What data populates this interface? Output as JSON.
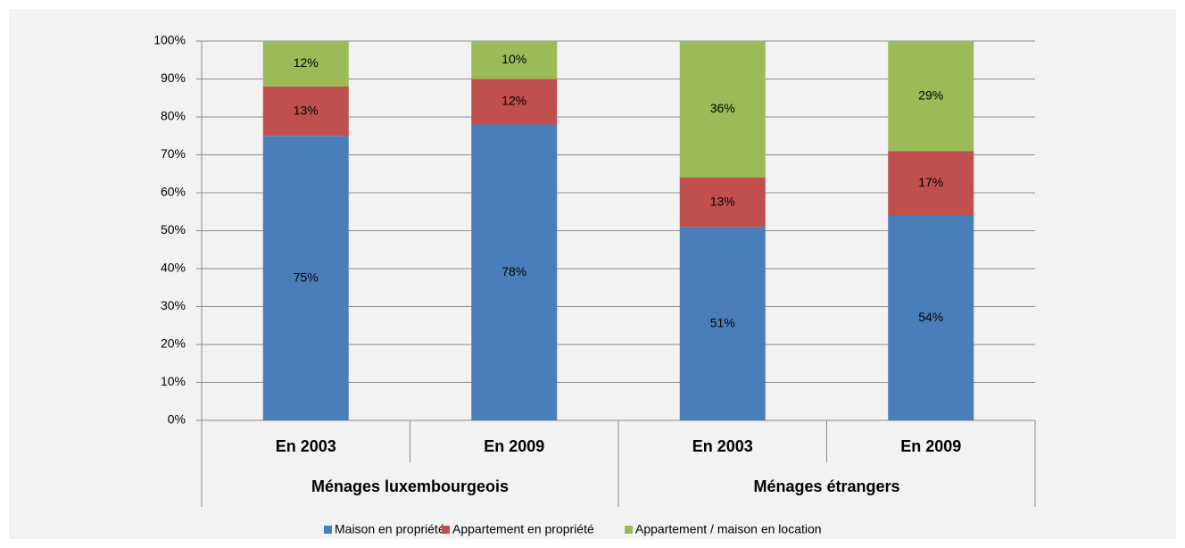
{
  "chart_data": {
    "type": "stacked_bar",
    "categories": [
      "En 2003",
      "En 2009",
      "En 2003",
      "En 2009"
    ],
    "groups": [
      "Ménages luxembourgeois",
      "Ménages étrangers"
    ],
    "series": [
      {
        "name": "Maison en propriété",
        "color": "#4a7ebb",
        "values": [
          75,
          78,
          51,
          54
        ],
        "value_labels": [
          "75%",
          "78%",
          "51%",
          "54%"
        ]
      },
      {
        "name": "Appartement en propriété",
        "color": "#c0504d",
        "values": [
          13,
          12,
          13,
          17
        ],
        "value_labels": [
          "13%",
          "12%",
          "13%",
          "17%"
        ]
      },
      {
        "name": "Appartement / maison en location",
        "color": "#9bbb59",
        "values": [
          12,
          10,
          36,
          29
        ],
        "value_labels": [
          "12%",
          "10%",
          "36%",
          "29%"
        ]
      }
    ],
    "ylim": [
      0,
      100
    ],
    "yticks": [
      {
        "value": 0,
        "label": "0%"
      },
      {
        "value": 10,
        "label": "10%"
      },
      {
        "value": 20,
        "label": "20%"
      },
      {
        "value": 30,
        "label": "30%"
      },
      {
        "value": 40,
        "label": "40%"
      },
      {
        "value": 50,
        "label": "50%"
      },
      {
        "value": 60,
        "label": "60%"
      },
      {
        "value": 70,
        "label": "70%"
      },
      {
        "value": 80,
        "label": "80%"
      },
      {
        "value": 90,
        "label": "90%"
      },
      {
        "value": 100,
        "label": "100%"
      }
    ],
    "grid": true,
    "legend": "bottom"
  }
}
